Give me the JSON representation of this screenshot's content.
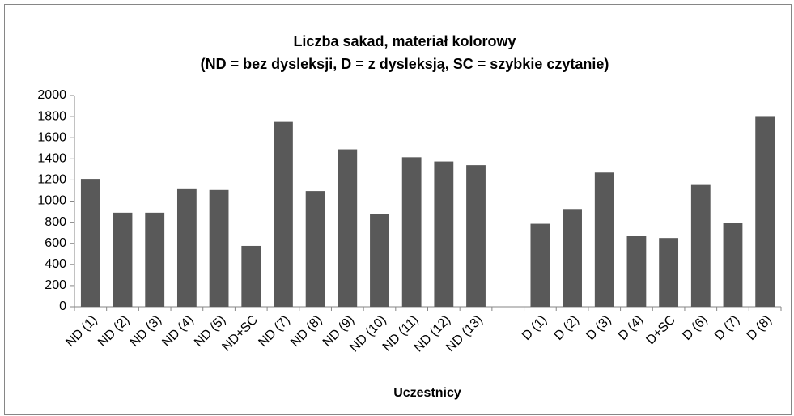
{
  "chart_data": {
    "type": "bar",
    "title": "Liczba sakad, materiał kolorowy",
    "subtitle": "(ND = bez dysleksji, D =  z dysleksją, SC = szybkie czytanie)",
    "x_label": "Uczestnicy",
    "categories": [
      "ND (1)",
      "ND (2)",
      "ND (3)",
      "ND (4)",
      "ND (5)",
      "ND+SC",
      "ND (7)",
      "ND (8)",
      "ND (9)",
      "ND (10)",
      "ND (11)",
      "ND (12)",
      "ND (13)",
      null,
      "D (1)",
      "D (2)",
      "D (3)",
      "D (4)",
      "D+SC",
      "D (6)",
      "D (7)",
      "D (8)"
    ],
    "values": [
      1210,
      890,
      890,
      1120,
      1105,
      575,
      1750,
      1095,
      1490,
      875,
      1415,
      1375,
      1340,
      null,
      785,
      925,
      1270,
      670,
      650,
      1160,
      795,
      1805
    ],
    "color": "#595959",
    "ylim": [
      0,
      2000
    ],
    "yticks": [
      0,
      200,
      400,
      600,
      800,
      1000,
      1200,
      1400,
      1600,
      1800,
      2000
    ],
    "grid": false
  }
}
